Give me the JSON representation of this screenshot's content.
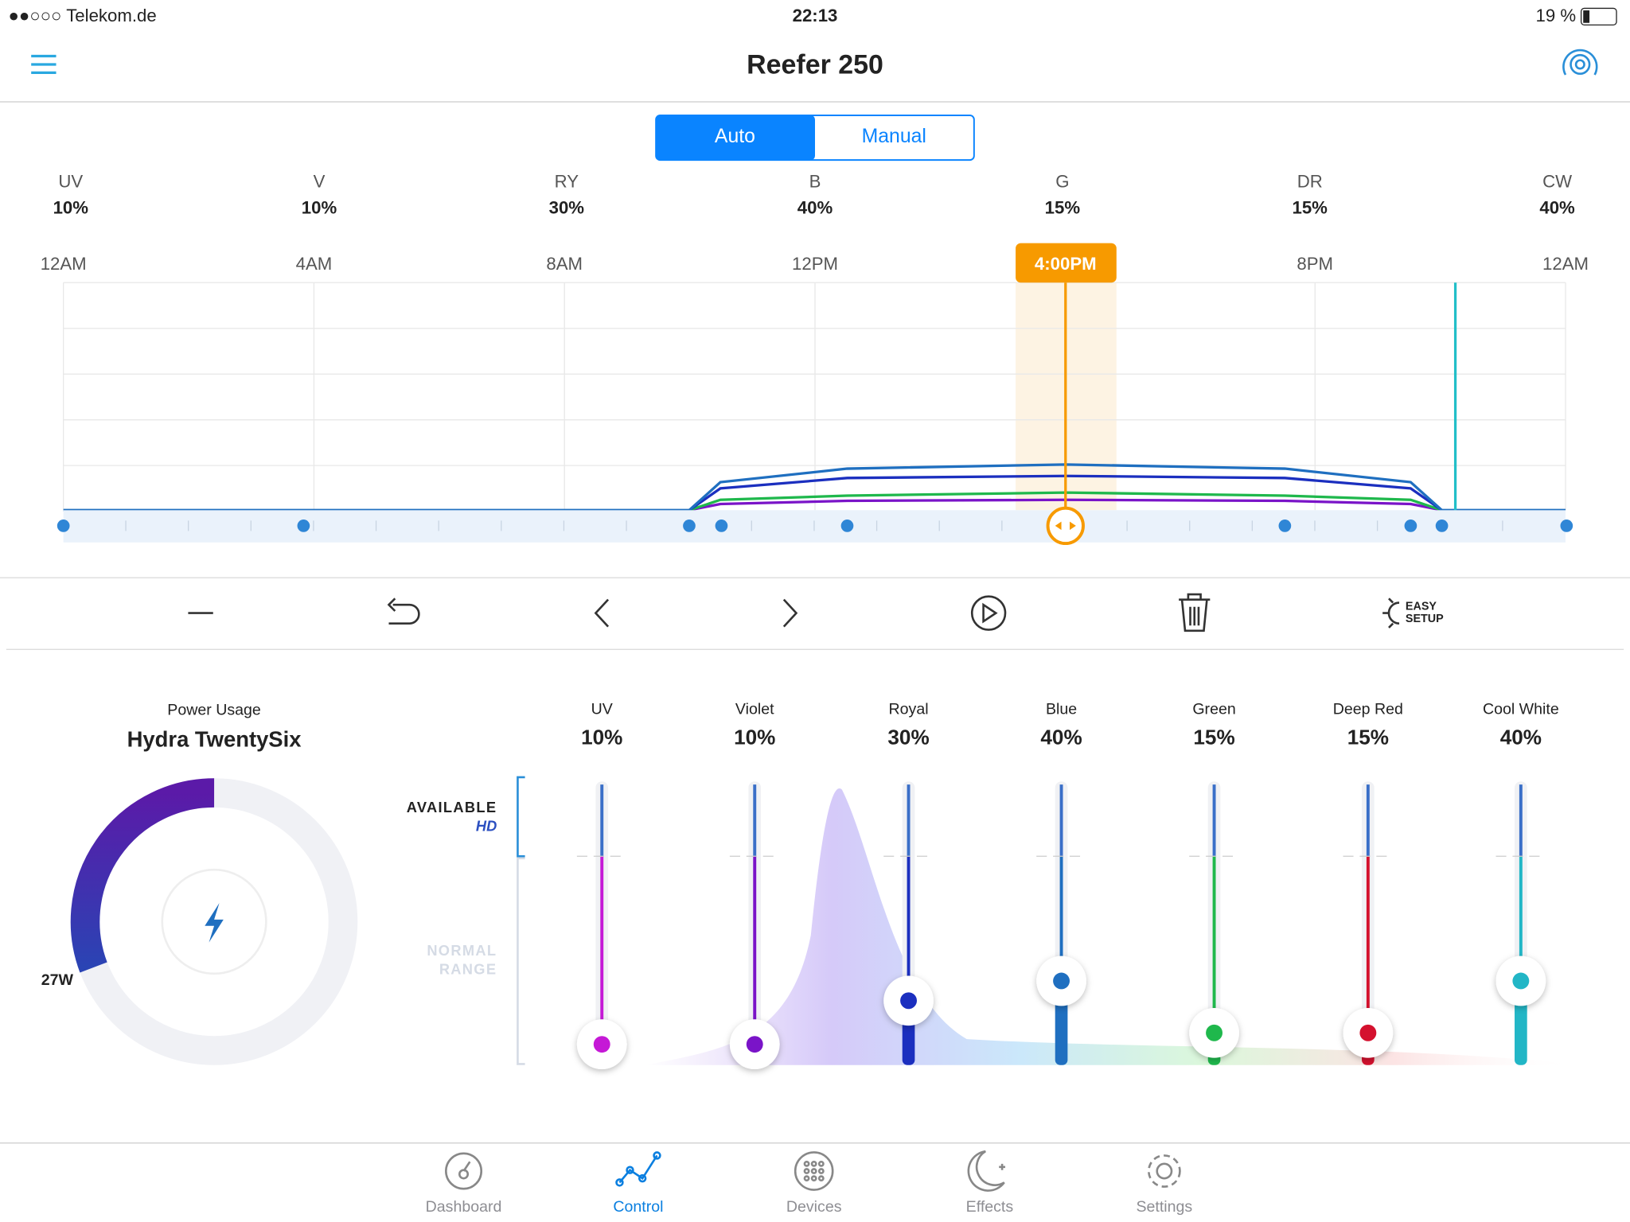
{
  "status_bar": {
    "carrier": "●●○○○ Telekom.de",
    "time": "22:13",
    "battery": "19 %"
  },
  "header": {
    "title": "Reefer 250"
  },
  "mode_toggle": {
    "options": [
      "Auto",
      "Manual"
    ]
  },
  "channel_summary": [
    {
      "label": "UV",
      "value": "10%"
    },
    {
      "label": "V",
      "value": "10%"
    },
    {
      "label": "RY",
      "value": "30%"
    },
    {
      "label": "B",
      "value": "40%"
    },
    {
      "label": "G",
      "value": "15%"
    },
    {
      "label": "DR",
      "value": "15%"
    },
    {
      "label": "CW",
      "value": "40%"
    }
  ],
  "timeline": {
    "time_labels": [
      "12AM",
      "4AM",
      "8AM",
      "12PM",
      "8PM",
      "12AM"
    ],
    "selected_time": "4:00PM"
  },
  "toolbar": {
    "easy_setup": [
      "EASY",
      "SETUP"
    ]
  },
  "power": {
    "label": "Power Usage",
    "device": "Hydra TwentySix",
    "watts": "27W"
  },
  "range_labels": {
    "available": "AVAILABLE",
    "hd": "HD",
    "normal": [
      "NORMAL",
      "RANGE"
    ]
  },
  "sliders": [
    {
      "name": "UV",
      "value": "10%"
    },
    {
      "name": "Violet",
      "value": "10%"
    },
    {
      "name": "Royal",
      "value": "30%"
    },
    {
      "name": "Blue",
      "value": "40%"
    },
    {
      "name": "Green",
      "value": "15%"
    },
    {
      "name": "Deep Red",
      "value": "15%"
    },
    {
      "name": "Cool White",
      "value": "40%"
    }
  ],
  "tabs": [
    "Dashboard",
    "Control",
    "Devices",
    "Effects",
    "Settings"
  ]
}
